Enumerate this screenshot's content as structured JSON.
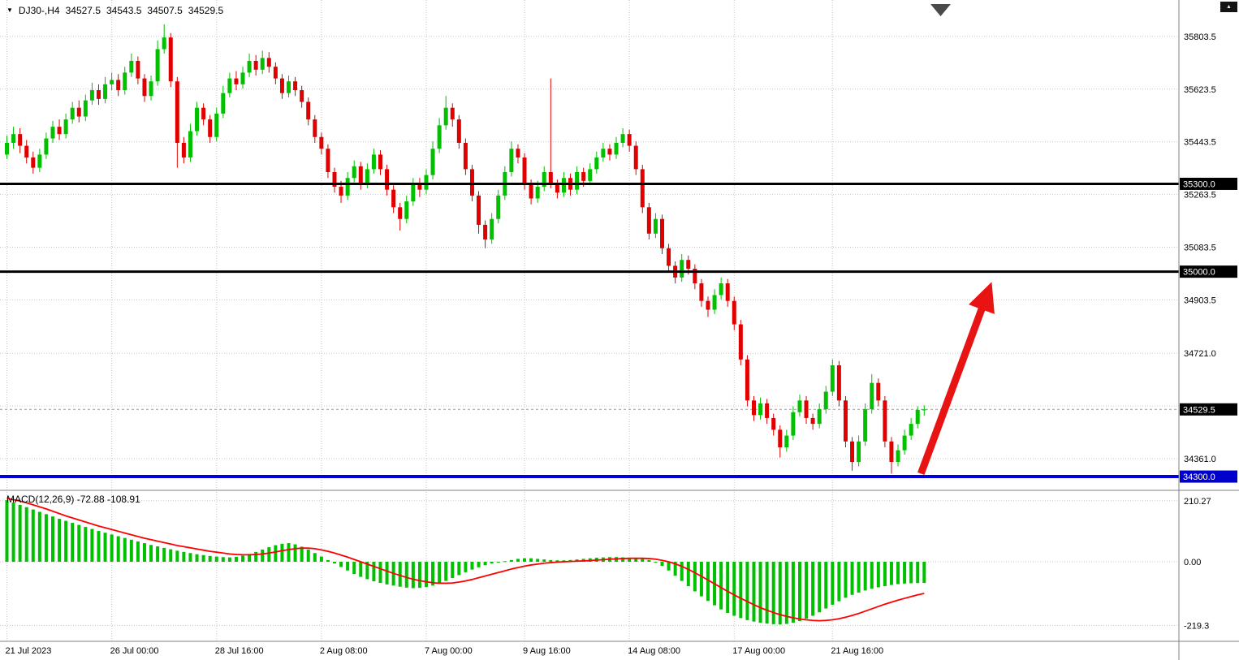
{
  "header": {
    "dropdown_icon": "▼",
    "symbol": "DJ30-,H4",
    "open": "34527.5",
    "high": "34543.5",
    "low": "34507.5",
    "close": "34529.5"
  },
  "icons": {
    "axis_corner_triangle": "▲"
  },
  "chart_data": {
    "type": "candlestick",
    "symbol": "DJ30-",
    "timeframe": "H4",
    "price_range": [
      34253,
      35928
    ],
    "grid_levels": [
      35803.5,
      35623.5,
      35443.5,
      35263.5,
      35083.5,
      34903.5,
      34721.0,
      34541.0,
      34361.0
    ],
    "axis_labels": [
      {
        "price": 35803.5,
        "text": "35803.5"
      },
      {
        "price": 35623.5,
        "text": "35623.5"
      },
      {
        "price": 35443.5,
        "text": "35443.5"
      },
      {
        "price": 35263.5,
        "text": "35263.5"
      },
      {
        "price": 35083.5,
        "text": "35083.5"
      },
      {
        "price": 34903.5,
        "text": "34903.5"
      },
      {
        "price": 34721.0,
        "text": "34721.0"
      },
      {
        "price": 34361.0,
        "text": "34361.0"
      }
    ],
    "hlines": [
      {
        "price": 35300.0,
        "label": "35300.0",
        "color": "#000000",
        "tag_bg": "#000000",
        "width": 3
      },
      {
        "price": 35000.0,
        "label": "35000.0",
        "color": "#000000",
        "tag_bg": "#000000",
        "width": 3
      },
      {
        "price": 34300.0,
        "label": "34300.0",
        "color": "#0000dd",
        "tag_bg": "#0000cc",
        "width": 4
      }
    ],
    "current_price": {
      "price": 34529.5,
      "label": "34529.5",
      "tag_bg": "#000000"
    },
    "x_labels": [
      {
        "bar": 0,
        "text": "21 Jul 2023"
      },
      {
        "bar": 16,
        "text": "26 Jul 00:00"
      },
      {
        "bar": 32,
        "text": "28 Jul 16:00"
      },
      {
        "bar": 48,
        "text": "2 Aug 08:00"
      },
      {
        "bar": 64,
        "text": "7 Aug 00:00"
      },
      {
        "bar": 79,
        "text": "9 Aug 16:00"
      },
      {
        "bar": 95,
        "text": "14 Aug 08:00"
      },
      {
        "bar": 111,
        "text": "17 Aug 00:00"
      },
      {
        "bar": 126,
        "text": "21 Aug 16:00"
      }
    ],
    "colors": {
      "bull": "#00c000",
      "bear": "#e00000",
      "grid": "#c6c6c6",
      "signal": "#ff0000",
      "arrow": "#e81414",
      "divider": "#808080"
    },
    "arrow": {
      "from_bar": 139.5,
      "from_price": 34310,
      "to_bar": 150.3,
      "to_price": 34965
    },
    "candles": [
      [
        35400,
        35465,
        35385,
        35440
      ],
      [
        35440,
        35495,
        35420,
        35470
      ],
      [
        35470,
        35490,
        35405,
        35430
      ],
      [
        35430,
        35450,
        35370,
        35390
      ],
      [
        35390,
        35410,
        35335,
        35355
      ],
      [
        35355,
        35420,
        35340,
        35400
      ],
      [
        35400,
        35475,
        35385,
        35455
      ],
      [
        35455,
        35515,
        35440,
        35495
      ],
      [
        35495,
        35520,
        35450,
        35470
      ],
      [
        35470,
        35540,
        35455,
        35520
      ],
      [
        35520,
        35580,
        35505,
        35560
      ],
      [
        35560,
        35585,
        35510,
        35530
      ],
      [
        35530,
        35605,
        35515,
        35585
      ],
      [
        35585,
        35645,
        35570,
        35620
      ],
      [
        35620,
        35640,
        35570,
        35590
      ],
      [
        35590,
        35665,
        35575,
        35640
      ],
      [
        35640,
        35680,
        35620,
        35655
      ],
      [
        35655,
        35675,
        35600,
        35620
      ],
      [
        35620,
        35700,
        35605,
        35680
      ],
      [
        35680,
        35745,
        35665,
        35720
      ],
      [
        35720,
        35735,
        35640,
        35660
      ],
      [
        35660,
        35675,
        35580,
        35600
      ],
      [
        35600,
        35670,
        35585,
        35650
      ],
      [
        35650,
        35790,
        35635,
        35760
      ],
      [
        35760,
        35845,
        35745,
        35800
      ],
      [
        35800,
        35815,
        35630,
        35650
      ],
      [
        35650,
        35665,
        35355,
        35440
      ],
      [
        35440,
        35460,
        35370,
        35390
      ],
      [
        35390,
        35505,
        35375,
        35480
      ],
      [
        35480,
        35580,
        35465,
        35560
      ],
      [
        35560,
        35575,
        35500,
        35520
      ],
      [
        35520,
        35535,
        35440,
        35460
      ],
      [
        35460,
        35560,
        35445,
        35540
      ],
      [
        35540,
        35635,
        35525,
        35610
      ],
      [
        35610,
        35680,
        35595,
        35660
      ],
      [
        35660,
        35685,
        35620,
        35640
      ],
      [
        35640,
        35700,
        35625,
        35680
      ],
      [
        35680,
        35745,
        35665,
        35720
      ],
      [
        35720,
        35740,
        35670,
        35690
      ],
      [
        35690,
        35755,
        35675,
        35730
      ],
      [
        35730,
        35750,
        35680,
        35700
      ],
      [
        35700,
        35715,
        35640,
        35660
      ],
      [
        35660,
        35675,
        35590,
        35610
      ],
      [
        35610,
        35670,
        35595,
        35650
      ],
      [
        35650,
        35665,
        35600,
        35620
      ],
      [
        35620,
        35635,
        35560,
        35580
      ],
      [
        35580,
        35595,
        35500,
        35520
      ],
      [
        35520,
        35535,
        35440,
        35460
      ],
      [
        35460,
        35475,
        35400,
        35420
      ],
      [
        35420,
        35435,
        35320,
        35340
      ],
      [
        35340,
        35355,
        35270,
        35290
      ],
      [
        35290,
        35310,
        35235,
        35260
      ],
      [
        35260,
        35340,
        35245,
        35320
      ],
      [
        35320,
        35380,
        35305,
        35360
      ],
      [
        35360,
        35375,
        35280,
        35300
      ],
      [
        35300,
        35370,
        35285,
        35350
      ],
      [
        35350,
        35420,
        35335,
        35400
      ],
      [
        35400,
        35415,
        35330,
        35350
      ],
      [
        35350,
        35365,
        35260,
        35280
      ],
      [
        35280,
        35295,
        35200,
        35220
      ],
      [
        35220,
        35235,
        35140,
        35180
      ],
      [
        35180,
        35260,
        35165,
        35240
      ],
      [
        35240,
        35320,
        35225,
        35300
      ],
      [
        35300,
        35320,
        35255,
        35280
      ],
      [
        35280,
        35350,
        35265,
        35330
      ],
      [
        35330,
        35445,
        35315,
        35420
      ],
      [
        35420,
        35525,
        35405,
        35500
      ],
      [
        35500,
        35600,
        35485,
        35560
      ],
      [
        35560,
        35575,
        35495,
        35520
      ],
      [
        35520,
        35535,
        35420,
        35440
      ],
      [
        35440,
        35455,
        35330,
        35350
      ],
      [
        35350,
        35365,
        35240,
        35260
      ],
      [
        35260,
        35275,
        35130,
        35160
      ],
      [
        35160,
        35175,
        35080,
        35110
      ],
      [
        35110,
        35200,
        35095,
        35180
      ],
      [
        35180,
        35280,
        35165,
        35260
      ],
      [
        35260,
        35360,
        35245,
        35340
      ],
      [
        35340,
        35445,
        35325,
        35420
      ],
      [
        35420,
        35435,
        35370,
        35390
      ],
      [
        35390,
        35405,
        35280,
        35300
      ],
      [
        35300,
        35315,
        35230,
        35250
      ],
      [
        35250,
        35310,
        35235,
        35290
      ],
      [
        35290,
        35360,
        35275,
        35340
      ],
      [
        35340,
        35660,
        35285,
        35300
      ],
      [
        35300,
        35315,
        35250,
        35270
      ],
      [
        35270,
        35340,
        35255,
        35320
      ],
      [
        35320,
        35335,
        35260,
        35280
      ],
      [
        35280,
        35360,
        35265,
        35340
      ],
      [
        35340,
        35355,
        35290,
        35310
      ],
      [
        35310,
        35370,
        35295,
        35350
      ],
      [
        35350,
        35410,
        35335,
        35390
      ],
      [
        35390,
        35440,
        35375,
        35420
      ],
      [
        35420,
        35435,
        35380,
        35400
      ],
      [
        35400,
        35460,
        35385,
        35440
      ],
      [
        35440,
        35490,
        35425,
        35470
      ],
      [
        35470,
        35485,
        35410,
        35430
      ],
      [
        35430,
        35445,
        35330,
        35350
      ],
      [
        35350,
        35365,
        35200,
        35220
      ],
      [
        35220,
        35235,
        35110,
        35130
      ],
      [
        35130,
        35200,
        35115,
        35180
      ],
      [
        35180,
        35195,
        35060,
        35080
      ],
      [
        35080,
        35095,
        35000,
        35020
      ],
      [
        35020,
        35035,
        34960,
        34980
      ],
      [
        34980,
        35060,
        34965,
        35040
      ],
      [
        35040,
        35055,
        34990,
        35010
      ],
      [
        35010,
        35025,
        34940,
        34960
      ],
      [
        34960,
        34975,
        34880,
        34900
      ],
      [
        34900,
        34915,
        34845,
        34870
      ],
      [
        34870,
        34940,
        34855,
        34920
      ],
      [
        34920,
        34980,
        34905,
        34960
      ],
      [
        34960,
        34975,
        34880,
        34900
      ],
      [
        34900,
        34915,
        34800,
        34820
      ],
      [
        34820,
        34835,
        34680,
        34700
      ],
      [
        34700,
        34715,
        34540,
        34560
      ],
      [
        34560,
        34575,
        34490,
        34510
      ],
      [
        34510,
        34570,
        34495,
        34550
      ],
      [
        34550,
        34565,
        34480,
        34500
      ],
      [
        34500,
        34515,
        34440,
        34460
      ],
      [
        34460,
        34475,
        34365,
        34400
      ],
      [
        34400,
        34460,
        34385,
        34440
      ],
      [
        34440,
        34540,
        34425,
        34520
      ],
      [
        34520,
        34580,
        34505,
        34560
      ],
      [
        34560,
        34575,
        34480,
        34500
      ],
      [
        34500,
        34515,
        34460,
        34480
      ],
      [
        34480,
        34550,
        34465,
        34530
      ],
      [
        34530,
        34610,
        34515,
        34590
      ],
      [
        34590,
        34700,
        34575,
        34680
      ],
      [
        34680,
        34695,
        34540,
        34560
      ],
      [
        34560,
        34575,
        34400,
        34420
      ],
      [
        34420,
        34435,
        34320,
        34350
      ],
      [
        34350,
        34440,
        34335,
        34420
      ],
      [
        34420,
        34550,
        34405,
        34530
      ],
      [
        34530,
        34650,
        34515,
        34620
      ],
      [
        34620,
        34635,
        34540,
        34560
      ],
      [
        34560,
        34575,
        34400,
        34420
      ],
      [
        34420,
        34435,
        34310,
        34350
      ],
      [
        34350,
        34410,
        34335,
        34390
      ],
      [
        34390,
        34460,
        34375,
        34440
      ],
      [
        34440,
        34500,
        34425,
        34480
      ],
      [
        34480,
        34540,
        34465,
        34527.5
      ],
      [
        34527.5,
        34543.5,
        34507.5,
        34529.5
      ]
    ],
    "macd": {
      "label": "MACD(12,26,9)",
      "main_value": "-72.88",
      "signal_value": "-108.91",
      "range": [
        -274,
        246
      ],
      "axis_labels": [
        {
          "v": 210.27,
          "text": "210.27"
        },
        {
          "v": 0,
          "text": "0.00"
        },
        {
          "v": -219.3,
          "text": "-219.3"
        }
      ],
      "main": [
        212,
        204,
        196,
        188,
        180,
        172,
        164,
        156,
        148,
        141,
        134,
        127,
        120,
        113,
        106,
        100,
        94,
        88,
        82,
        76,
        70,
        64,
        58,
        53,
        48,
        43,
        38,
        34,
        30,
        26,
        23,
        20,
        18,
        16,
        15,
        17,
        21,
        27,
        34,
        42,
        50,
        57,
        62,
        64,
        60,
        52,
        42,
        30,
        18,
        6,
        -6,
        -18,
        -30,
        -42,
        -52,
        -60,
        -67,
        -73,
        -78,
        -82,
        -86,
        -89,
        -91,
        -90,
        -87,
        -82,
        -75,
        -66,
        -56,
        -46,
        -36,
        -27,
        -19,
        -12,
        -6,
        -2,
        2,
        6,
        10,
        12,
        12,
        10,
        8,
        6,
        5,
        5,
        6,
        8,
        10,
        12,
        14,
        15,
        16,
        16,
        15,
        12,
        12,
        10,
        6,
        -2,
        -14,
        -30,
        -48,
        -66,
        -84,
        -102,
        -119,
        -135,
        -150,
        -164,
        -176,
        -186,
        -194,
        -201,
        -206,
        -210,
        -213,
        -215,
        -216,
        -214,
        -210,
        -204,
        -196,
        -186,
        -174,
        -161,
        -148,
        -136,
        -124,
        -114,
        -106,
        -99,
        -93,
        -88,
        -84,
        -80,
        -77,
        -75,
        -74,
        -73.3,
        -72.88
      ],
      "signal": [
        218,
        214,
        209,
        203,
        196,
        189,
        182,
        174,
        166,
        158,
        151,
        144,
        137,
        130,
        123,
        117,
        111,
        105,
        99,
        93,
        87,
        81,
        76,
        71,
        66,
        61,
        56,
        52,
        48,
        44,
        40,
        36,
        33,
        30,
        27,
        25,
        24,
        24,
        25,
        27,
        30,
        34,
        38,
        42,
        45,
        47,
        47,
        45,
        41,
        36,
        30,
        23,
        16,
        8,
        0,
        -8,
        -16,
        -24,
        -32,
        -40,
        -47,
        -54,
        -60,
        -65,
        -69,
        -72,
        -74,
        -74,
        -73,
        -70,
        -66,
        -61,
        -55,
        -49,
        -43,
        -37,
        -31,
        -25,
        -20,
        -15,
        -11,
        -8,
        -5,
        -3,
        -1,
        0,
        1,
        2,
        3,
        4,
        6,
        7,
        9,
        10,
        11,
        12,
        12,
        12,
        11,
        9,
        5,
        0,
        -7,
        -16,
        -26,
        -38,
        -50,
        -63,
        -76,
        -89,
        -102,
        -114,
        -126,
        -137,
        -148,
        -158,
        -167,
        -175,
        -182,
        -188,
        -193,
        -197,
        -200,
        -202,
        -203,
        -202,
        -200,
        -196,
        -191,
        -185,
        -178,
        -170,
        -162,
        -154,
        -146,
        -139,
        -132,
        -126,
        -120,
        -114,
        -108.91
      ]
    }
  }
}
